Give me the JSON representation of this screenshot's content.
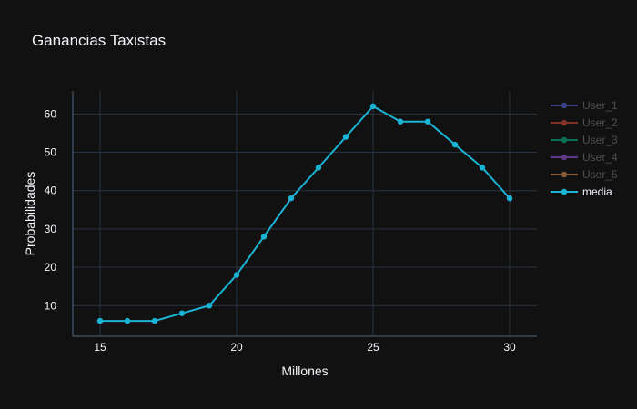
{
  "chart_data": {
    "type": "line",
    "title": "Ganancias Taxistas",
    "xlabel": "Millones",
    "ylabel": "Probabilidades",
    "xlim": [
      14,
      31
    ],
    "ylim": [
      2,
      66
    ],
    "xticks": [
      15,
      20,
      25,
      30
    ],
    "yticks": [
      10,
      20,
      30,
      40,
      50,
      60
    ],
    "grid": true,
    "legend_position": "right",
    "series": [
      {
        "name": "User_1",
        "color": "#636efa",
        "visible": "legendonly",
        "x": [],
        "y": []
      },
      {
        "name": "User_2",
        "color": "#ef553b",
        "visible": "legendonly",
        "x": [],
        "y": []
      },
      {
        "name": "User_3",
        "color": "#00cc96",
        "visible": "legendonly",
        "x": [],
        "y": []
      },
      {
        "name": "User_4",
        "color": "#ab63fa",
        "visible": "legendonly",
        "x": [],
        "y": []
      },
      {
        "name": "User_5",
        "color": "#ffa15a",
        "visible": "legendonly",
        "x": [],
        "y": []
      },
      {
        "name": "media",
        "color": "#19b4d6",
        "visible": true,
        "x": [
          15,
          16,
          17,
          18,
          19,
          20,
          21,
          22,
          23,
          24,
          25,
          26,
          27,
          28,
          29,
          30
        ],
        "y": [
          6,
          6,
          6,
          8,
          10,
          18,
          28,
          38,
          46,
          54,
          62,
          58,
          58,
          52,
          46,
          38
        ]
      }
    ]
  },
  "theme": {
    "background": "#111111",
    "grid_color": "#283442",
    "axis_line_color": "#506784",
    "text_color": "#f2f5fa",
    "hidden_legend_text_color": "#8a8c90"
  }
}
